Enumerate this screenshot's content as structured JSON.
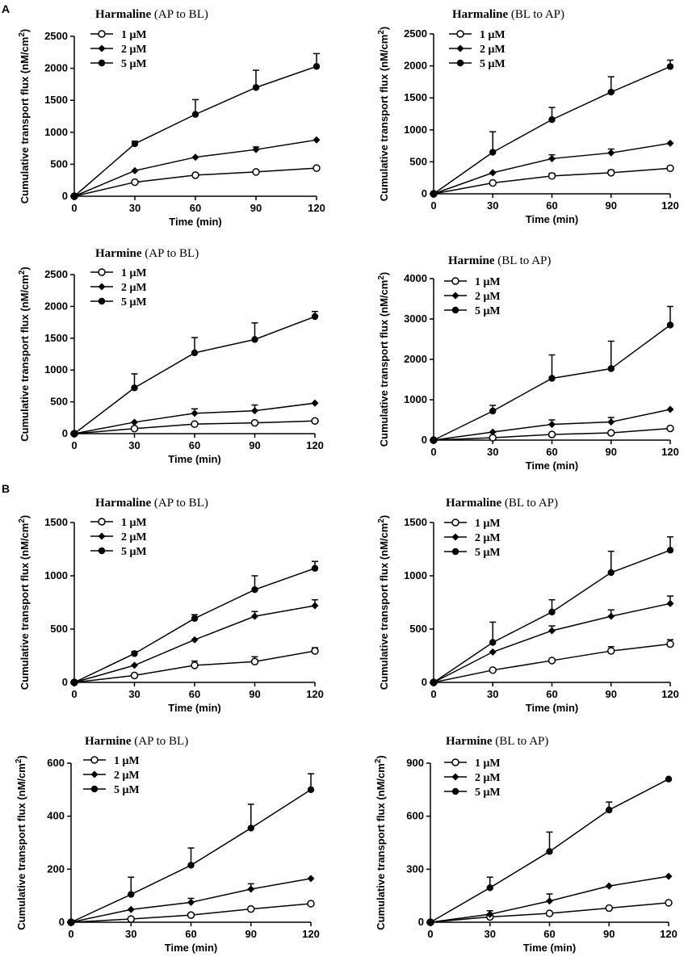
{
  "panel_labels": [
    "A",
    "B"
  ],
  "colors": {
    "ink": "#000000",
    "background": "#ffffff"
  },
  "chart_data": [
    {
      "type": "line",
      "panel": "A",
      "title_drug": "Harmaline",
      "title_dir": "(AP to BL)",
      "xlabel": "Time (min)",
      "ylabel": "Cumulative transport flux (nM/cm",
      "ylabel_sup": "2",
      "ylabel_close": ")",
      "x": [
        0,
        30,
        60,
        90,
        120
      ],
      "xlim": [
        0,
        120
      ],
      "ylim": [
        0,
        2500
      ],
      "yticks": [
        0,
        500,
        1000,
        1500,
        2000,
        2500
      ],
      "series": [
        {
          "name": "1 μM",
          "marker": "open-circle",
          "values": [
            0,
            220,
            330,
            380,
            440
          ],
          "err": [
            0,
            0,
            0,
            0,
            0
          ]
        },
        {
          "name": "2 μM",
          "marker": "diamond",
          "values": [
            0,
            400,
            610,
            730,
            880
          ],
          "err": [
            0,
            0,
            0,
            40,
            0
          ]
        },
        {
          "name": "5 μM",
          "marker": "filled-circle",
          "values": [
            0,
            820,
            1280,
            1700,
            2030
          ],
          "err": [
            0,
            40,
            230,
            270,
            200
          ]
        }
      ]
    },
    {
      "type": "line",
      "panel": "A",
      "title_drug": "Harmaline",
      "title_dir": "(BL to AP)",
      "xlabel": "Time (min)",
      "ylabel": "Cumulative transport flux (nM/cm",
      "ylabel_sup": "2",
      "ylabel_close": ")",
      "x": [
        0,
        30,
        60,
        90,
        120
      ],
      "xlim": [
        0,
        120
      ],
      "ylim": [
        0,
        2500
      ],
      "yticks": [
        0,
        500,
        1000,
        1500,
        2000,
        2500
      ],
      "series": [
        {
          "name": "1 μM",
          "marker": "open-circle",
          "values": [
            0,
            170,
            280,
            330,
            400
          ],
          "err": [
            0,
            0,
            40,
            40,
            0
          ]
        },
        {
          "name": "2 μM",
          "marker": "diamond",
          "values": [
            0,
            330,
            550,
            640,
            790
          ],
          "err": [
            0,
            0,
            60,
            60,
            0
          ]
        },
        {
          "name": "5 μM",
          "marker": "filled-circle",
          "values": [
            0,
            650,
            1160,
            1590,
            1990
          ],
          "err": [
            0,
            320,
            190,
            240,
            100
          ]
        }
      ]
    },
    {
      "type": "line",
      "panel": "A",
      "title_drug": "Harmine",
      "title_dir": "(AP to BL)",
      "xlabel": "Time (min)",
      "ylabel": "Cumulative transport flux (nM/cm",
      "ylabel_sup": "2",
      "ylabel_close": ")",
      "x": [
        0,
        30,
        60,
        90,
        120
      ],
      "xlim": [
        0,
        120
      ],
      "ylim": [
        0,
        2500
      ],
      "yticks": [
        0,
        500,
        1000,
        1500,
        2000,
        2500
      ],
      "series": [
        {
          "name": "1 μM",
          "marker": "open-circle",
          "values": [
            0,
            80,
            150,
            170,
            200
          ],
          "err": [
            0,
            0,
            0,
            0,
            0
          ]
        },
        {
          "name": "2 μM",
          "marker": "diamond",
          "values": [
            0,
            180,
            320,
            360,
            480
          ],
          "err": [
            0,
            0,
            70,
            90,
            0
          ]
        },
        {
          "name": "5 μM",
          "marker": "filled-circle",
          "values": [
            0,
            720,
            1270,
            1480,
            1840
          ],
          "err": [
            0,
            220,
            240,
            260,
            80
          ]
        }
      ]
    },
    {
      "type": "line",
      "panel": "A",
      "title_drug": "Harmine",
      "title_dir": "(BL to AP)",
      "xlabel": "Time (min)",
      "ylabel": "Cumulative transport flux (nM/cm",
      "ylabel_sup": "2",
      "ylabel_close": ")",
      "x": [
        0,
        30,
        60,
        90,
        120
      ],
      "xlim": [
        0,
        120
      ],
      "ylim": [
        0,
        4000
      ],
      "yticks": [
        0,
        1000,
        2000,
        3000,
        4000
      ],
      "series": [
        {
          "name": "1 μM",
          "marker": "open-circle",
          "values": [
            0,
            60,
            140,
            180,
            290
          ],
          "err": [
            0,
            0,
            0,
            0,
            0
          ]
        },
        {
          "name": "2 μM",
          "marker": "diamond",
          "values": [
            0,
            200,
            390,
            450,
            760
          ],
          "err": [
            0,
            0,
            110,
            110,
            0
          ]
        },
        {
          "name": "5 μM",
          "marker": "filled-circle",
          "values": [
            0,
            720,
            1530,
            1770,
            2850
          ],
          "err": [
            0,
            140,
            580,
            680,
            460
          ]
        }
      ]
    },
    {
      "type": "line",
      "panel": "B",
      "title_drug": "Harmaline",
      "title_dir": "(AP to BL)",
      "xlabel": "Time (min)",
      "ylabel": "Cumulative transport flux (nM/cm",
      "ylabel_sup": "2",
      "ylabel_close": ")",
      "x": [
        0,
        30,
        60,
        90,
        120
      ],
      "xlim": [
        0,
        120
      ],
      "ylim": [
        0,
        1500
      ],
      "yticks": [
        0,
        500,
        1000,
        1500
      ],
      "series": [
        {
          "name": "1 μM",
          "marker": "open-circle",
          "values": [
            0,
            65,
            160,
            195,
            295
          ],
          "err": [
            0,
            0,
            40,
            45,
            30
          ]
        },
        {
          "name": "2 μM",
          "marker": "diamond",
          "values": [
            0,
            160,
            400,
            620,
            720
          ],
          "err": [
            0,
            0,
            0,
            45,
            55
          ]
        },
        {
          "name": "5 μM",
          "marker": "filled-circle",
          "values": [
            0,
            270,
            600,
            870,
            1070
          ],
          "err": [
            0,
            20,
            35,
            130,
            65
          ]
        }
      ]
    },
    {
      "type": "line",
      "panel": "B",
      "title_drug": "Harmaline",
      "title_dir": "(BL to AP)",
      "xlabel": "Time (min)",
      "ylabel": "Cumulative transport flux (nM/cm",
      "ylabel_sup": "2",
      "ylabel_close": ")",
      "x": [
        0,
        30,
        60,
        90,
        120
      ],
      "xlim": [
        0,
        120
      ],
      "ylim": [
        0,
        1500
      ],
      "yticks": [
        0,
        500,
        1000,
        1500
      ],
      "series": [
        {
          "name": "1 μM",
          "marker": "open-circle",
          "values": [
            0,
            115,
            205,
            295,
            360
          ],
          "err": [
            0,
            0,
            0,
            40,
            40
          ]
        },
        {
          "name": "2 μM",
          "marker": "diamond",
          "values": [
            0,
            285,
            485,
            620,
            740
          ],
          "err": [
            0,
            0,
            45,
            60,
            70
          ]
        },
        {
          "name": "5 μM",
          "marker": "filled-circle",
          "values": [
            0,
            375,
            660,
            1030,
            1240
          ],
          "err": [
            0,
            190,
            115,
            200,
            125
          ]
        }
      ]
    },
    {
      "type": "line",
      "panel": "B",
      "title_drug": "Harmine",
      "title_dir": "(AP to BL)",
      "xlabel": "Time (min)",
      "ylabel": "Cumulative transport flux (nM/cm",
      "ylabel_sup": "2",
      "ylabel_close": ")",
      "x": [
        0,
        30,
        60,
        90,
        120
      ],
      "xlim": [
        0,
        120
      ],
      "ylim": [
        0,
        600
      ],
      "yticks": [
        0,
        200,
        400,
        600
      ],
      "series": [
        {
          "name": "1 μM",
          "marker": "open-circle",
          "values": [
            0,
            12,
            27,
            50,
            70
          ],
          "err": [
            0,
            0,
            0,
            0,
            0
          ]
        },
        {
          "name": "2 μM",
          "marker": "diamond",
          "values": [
            0,
            48,
            75,
            125,
            165
          ],
          "err": [
            0,
            0,
            15,
            20,
            0
          ]
        },
        {
          "name": "5 μM",
          "marker": "filled-circle",
          "values": [
            0,
            105,
            215,
            355,
            500
          ],
          "err": [
            0,
            65,
            65,
            90,
            60
          ]
        }
      ]
    },
    {
      "type": "line",
      "panel": "B",
      "title_drug": "Harmine",
      "title_dir": "(BL to AP)",
      "xlabel": "Time (min)",
      "ylabel": "Cumulative transport flux (nM/cm",
      "ylabel_sup": "2",
      "ylabel_close": ")",
      "x": [
        0,
        30,
        60,
        90,
        120
      ],
      "xlim": [
        0,
        120
      ],
      "ylim": [
        0,
        900
      ],
      "yticks": [
        0,
        300,
        600,
        900
      ],
      "series": [
        {
          "name": "1 μM",
          "marker": "open-circle",
          "values": [
            0,
            30,
            50,
            80,
            110
          ],
          "err": [
            0,
            0,
            0,
            0,
            0
          ]
        },
        {
          "name": "2 μM",
          "marker": "diamond",
          "values": [
            0,
            45,
            120,
            205,
            260
          ],
          "err": [
            0,
            20,
            40,
            0,
            0
          ]
        },
        {
          "name": "5 μM",
          "marker": "filled-circle",
          "values": [
            0,
            195,
            400,
            635,
            810
          ],
          "err": [
            0,
            60,
            110,
            45,
            0
          ]
        }
      ]
    }
  ]
}
